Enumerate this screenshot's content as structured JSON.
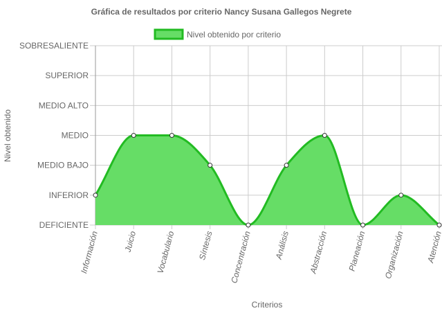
{
  "chart_data": {
    "type": "area",
    "title": "Gráfica de resultados por criterio Nancy Susana Gallegos Negrete",
    "xlabel": "Criterios",
    "ylabel": "Nivel obtenido",
    "y_levels": [
      "DEFICIENTE",
      "INFERIOR",
      "MEDIO BAJO",
      "MEDIO",
      "MEDIO ALTO",
      "SUPERIOR",
      "SOBRESALIENTE"
    ],
    "ylim": [
      0,
      6
    ],
    "categories": [
      "Información",
      "Juicio",
      "Vocabulario",
      "Síntesis",
      "Concentración",
      "Análisis",
      "Abstracción",
      "Planeación",
      "Organización",
      "Atención"
    ],
    "series": [
      {
        "name": "Nivel obtenido por criterio",
        "values": [
          1,
          3,
          3,
          2,
          0,
          2,
          3,
          0,
          1,
          0
        ],
        "fill": "#66dd66",
        "stroke": "#22bb22"
      }
    ],
    "grid": true,
    "legend_position": "top"
  }
}
